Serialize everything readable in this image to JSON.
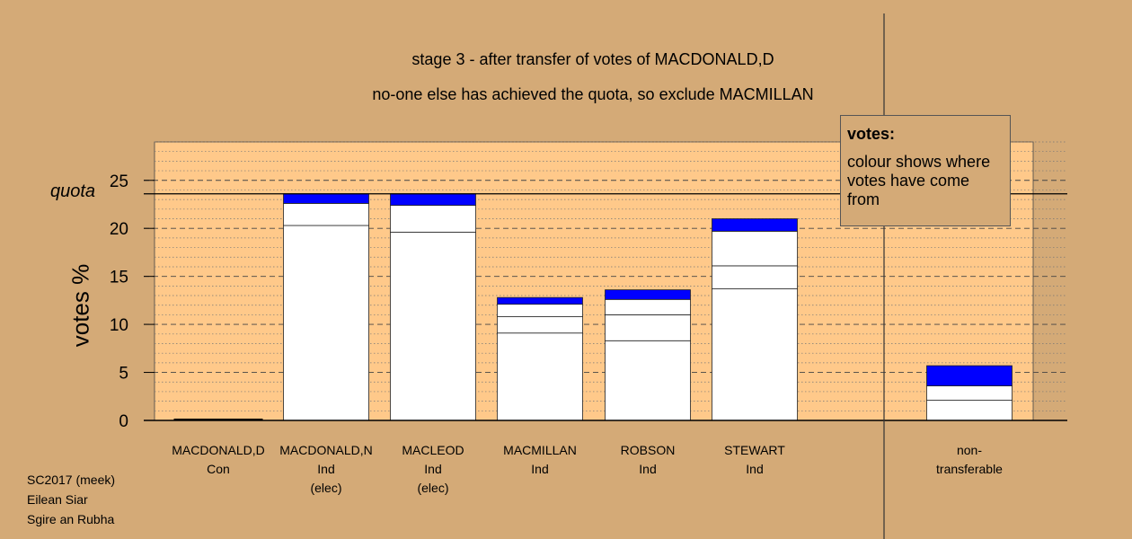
{
  "title_line1": "stage 3 - after transfer of votes of MACDONALD,D",
  "title_line2": "no-one else has achieved the quota, so exclude MACMILLAN",
  "credits": [
    "SC2017 (meek)",
    "Eilean Siar",
    "Sgire an Rubha"
  ],
  "legend": {
    "title": "votes:",
    "text": "colour shows where votes have come from"
  },
  "colors": {
    "background": "#d4aa77",
    "plot": "#ffc98a",
    "transfer": "#0000ff",
    "bar": "#ffffff"
  },
  "chart_data": {
    "type": "bar",
    "stacked": true,
    "ylabel": "votes %",
    "ylim": [
      0,
      29
    ],
    "yticks": [
      0,
      5,
      10,
      15,
      20,
      25
    ],
    "quota": 23.6,
    "quota_label": "quota",
    "categories": [
      {
        "name": "MACDONALD,D",
        "party": "Con",
        "note": "",
        "segments": []
      },
      {
        "name": "MACDONALD,N",
        "party": "Ind",
        "note": "(elec)",
        "segments": [
          20.3,
          2.3,
          1.0
        ]
      },
      {
        "name": "MACLEOD",
        "party": "Ind",
        "note": "(elec)",
        "segments": [
          19.6,
          2.8,
          1.2
        ]
      },
      {
        "name": "MACMILLAN",
        "party": "Ind",
        "note": "",
        "segments": [
          9.1,
          1.7,
          1.3,
          0.7
        ]
      },
      {
        "name": "ROBSON",
        "party": "Ind",
        "note": "",
        "segments": [
          8.3,
          2.7,
          1.6,
          1.0
        ]
      },
      {
        "name": "STEWART",
        "party": "Ind",
        "note": "",
        "segments": [
          13.7,
          2.4,
          3.6,
          1.3
        ]
      }
    ],
    "nontransferable": {
      "label_line1": "non-",
      "label_line2": "transferable",
      "segments": [
        2.1,
        1.5,
        2.1
      ]
    }
  }
}
